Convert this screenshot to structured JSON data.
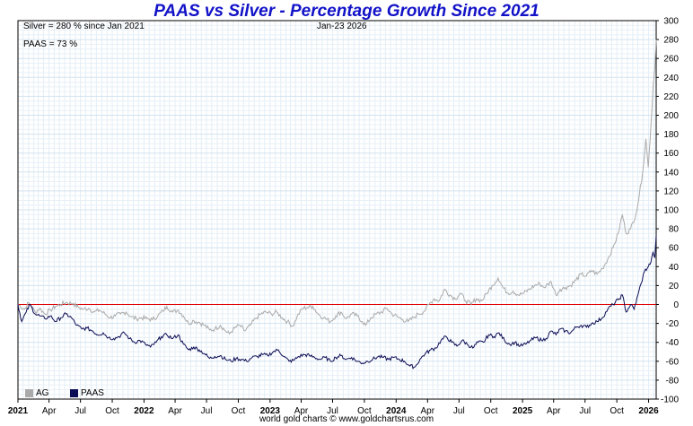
{
  "chart_data": {
    "type": "line",
    "title": "PAAS vs Silver - Percentage Growth Since 2021",
    "annotations": {
      "silver": "Silver = 280 % since Jan 2021",
      "paas": "PAAS = 73 %",
      "date": "Jan-23  2026"
    },
    "footer": "world gold charts © www.goldchartsrus.com",
    "xlim": [
      "2021-01-01",
      "2026-01-23"
    ],
    "ylim": [
      -100,
      300
    ],
    "yticks": [
      300,
      280,
      260,
      240,
      220,
      200,
      180,
      160,
      140,
      120,
      100,
      80,
      60,
      40,
      20,
      0,
      -20,
      -40,
      -60,
      -80,
      -100
    ],
    "xticks": [
      {
        "label": "2021",
        "date": "2021-01-01",
        "bold": true
      },
      {
        "label": "Apr",
        "date": "2021-04-01"
      },
      {
        "label": "Jul",
        "date": "2021-07-01"
      },
      {
        "label": "Oct",
        "date": "2021-10-01"
      },
      {
        "label": "2022",
        "date": "2022-01-01",
        "bold": true
      },
      {
        "label": "Apr",
        "date": "2022-04-01"
      },
      {
        "label": "Jul",
        "date": "2022-07-01"
      },
      {
        "label": "Oct",
        "date": "2022-10-01"
      },
      {
        "label": "2023",
        "date": "2023-01-01",
        "bold": true
      },
      {
        "label": "Apr",
        "date": "2023-04-01"
      },
      {
        "label": "Jul",
        "date": "2023-07-01"
      },
      {
        "label": "Oct",
        "date": "2023-10-01"
      },
      {
        "label": "2024",
        "date": "2024-01-01",
        "bold": true
      },
      {
        "label": "Apr",
        "date": "2024-04-01"
      },
      {
        "label": "Jul",
        "date": "2024-07-01"
      },
      {
        "label": "Oct",
        "date": "2024-10-01"
      },
      {
        "label": "2025",
        "date": "2025-01-01",
        "bold": true
      },
      {
        "label": "Apr",
        "date": "2025-04-01"
      },
      {
        "label": "Jul",
        "date": "2025-07-01"
      },
      {
        "label": "Oct",
        "date": "2025-10-01"
      },
      {
        "label": "2026",
        "date": "2026-01-01",
        "bold": true
      }
    ],
    "grid": true,
    "reference_line": {
      "y": 0,
      "color": "#dd0000"
    },
    "legend": {
      "position": "bottom-left"
    },
    "series": [
      {
        "name": "AG",
        "color": "#aaaaaa",
        "points": [
          [
            "2021-01-01",
            0
          ],
          [
            "2021-01-20",
            -5
          ],
          [
            "2021-02-01",
            2
          ],
          [
            "2021-02-20",
            -8
          ],
          [
            "2021-03-05",
            -4
          ],
          [
            "2021-03-20",
            -10
          ],
          [
            "2021-04-05",
            -6
          ],
          [
            "2021-04-20",
            -2
          ],
          [
            "2021-05-05",
            0
          ],
          [
            "2021-05-20",
            2
          ],
          [
            "2021-06-10",
            1
          ],
          [
            "2021-06-25",
            -3
          ],
          [
            "2021-07-10",
            -5
          ],
          [
            "2021-07-25",
            -4
          ],
          [
            "2021-08-10",
            -8
          ],
          [
            "2021-08-25",
            -6
          ],
          [
            "2021-09-10",
            -10
          ],
          [
            "2021-09-25",
            -14
          ],
          [
            "2021-10-10",
            -12
          ],
          [
            "2021-10-25",
            -10
          ],
          [
            "2021-11-10",
            -8
          ],
          [
            "2021-11-25",
            -13
          ],
          [
            "2021-12-10",
            -15
          ],
          [
            "2021-12-25",
            -14
          ],
          [
            "2022-01-10",
            -15
          ],
          [
            "2022-01-25",
            -16
          ],
          [
            "2022-02-10",
            -12
          ],
          [
            "2022-02-25",
            -7
          ],
          [
            "2022-03-08",
            -2
          ],
          [
            "2022-03-25",
            -8
          ],
          [
            "2022-04-10",
            -6
          ],
          [
            "2022-04-25",
            -12
          ],
          [
            "2022-05-10",
            -20
          ],
          [
            "2022-05-25",
            -17
          ],
          [
            "2022-06-10",
            -19
          ],
          [
            "2022-06-25",
            -22
          ],
          [
            "2022-07-10",
            -27
          ],
          [
            "2022-07-25",
            -26
          ],
          [
            "2022-08-10",
            -22
          ],
          [
            "2022-08-25",
            -28
          ],
          [
            "2022-09-05",
            -31
          ],
          [
            "2022-09-20",
            -25
          ],
          [
            "2022-10-05",
            -22
          ],
          [
            "2022-10-20",
            -28
          ],
          [
            "2022-11-05",
            -22
          ],
          [
            "2022-11-20",
            -15
          ],
          [
            "2022-12-05",
            -10
          ],
          [
            "2022-12-20",
            -8
          ],
          [
            "2023-01-05",
            -10
          ],
          [
            "2023-01-20",
            -8
          ],
          [
            "2023-02-05",
            -14
          ],
          [
            "2023-02-20",
            -18
          ],
          [
            "2023-03-08",
            -23
          ],
          [
            "2023-03-20",
            -13
          ],
          [
            "2023-04-05",
            -4
          ],
          [
            "2023-04-20",
            -3
          ],
          [
            "2023-05-05",
            -2
          ],
          [
            "2023-05-20",
            -10
          ],
          [
            "2023-06-05",
            -14
          ],
          [
            "2023-06-25",
            -18
          ],
          [
            "2023-07-10",
            -12
          ],
          [
            "2023-07-25",
            -8
          ],
          [
            "2023-08-10",
            -15
          ],
          [
            "2023-08-25",
            -10
          ],
          [
            "2023-09-10",
            -12
          ],
          [
            "2023-09-25",
            -18
          ],
          [
            "2023-10-05",
            -22
          ],
          [
            "2023-10-20",
            -14
          ],
          [
            "2023-11-05",
            -10
          ],
          [
            "2023-11-20",
            -8
          ],
          [
            "2023-12-05",
            -4
          ],
          [
            "2023-12-20",
            -10
          ],
          [
            "2024-01-05",
            -13
          ],
          [
            "2024-01-20",
            -16
          ],
          [
            "2024-02-05",
            -18
          ],
          [
            "2024-02-20",
            -14
          ],
          [
            "2024-03-05",
            -10
          ],
          [
            "2024-03-20",
            -8
          ],
          [
            "2024-04-05",
            0
          ],
          [
            "2024-04-20",
            6
          ],
          [
            "2024-05-05",
            4
          ],
          [
            "2024-05-20",
            16
          ],
          [
            "2024-06-05",
            10
          ],
          [
            "2024-06-20",
            6
          ],
          [
            "2024-07-05",
            12
          ],
          [
            "2024-07-20",
            4
          ],
          [
            "2024-08-05",
            0
          ],
          [
            "2024-08-20",
            6
          ],
          [
            "2024-09-05",
            4
          ],
          [
            "2024-09-20",
            12
          ],
          [
            "2024-10-05",
            20
          ],
          [
            "2024-10-22",
            28
          ],
          [
            "2024-11-05",
            18
          ],
          [
            "2024-11-20",
            12
          ],
          [
            "2024-12-05",
            14
          ],
          [
            "2024-12-20",
            10
          ],
          [
            "2025-01-05",
            12
          ],
          [
            "2025-01-20",
            16
          ],
          [
            "2025-02-05",
            20
          ],
          [
            "2025-02-20",
            22
          ],
          [
            "2025-03-05",
            18
          ],
          [
            "2025-03-25",
            24
          ],
          [
            "2025-04-08",
            10
          ],
          [
            "2025-04-20",
            16
          ],
          [
            "2025-05-05",
            18
          ],
          [
            "2025-05-20",
            20
          ],
          [
            "2025-06-05",
            26
          ],
          [
            "2025-06-20",
            32
          ],
          [
            "2025-07-05",
            30
          ],
          [
            "2025-07-20",
            36
          ],
          [
            "2025-08-05",
            32
          ],
          [
            "2025-08-20",
            38
          ],
          [
            "2025-09-05",
            48
          ],
          [
            "2025-09-20",
            60
          ],
          [
            "2025-10-05",
            75
          ],
          [
            "2025-10-17",
            95
          ],
          [
            "2025-10-28",
            75
          ],
          [
            "2025-11-10",
            80
          ],
          [
            "2025-11-25",
            95
          ],
          [
            "2025-12-05",
            115
          ],
          [
            "2025-12-15",
            140
          ],
          [
            "2025-12-24",
            175
          ],
          [
            "2025-12-31",
            145
          ],
          [
            "2026-01-08",
            190
          ],
          [
            "2026-01-14",
            230
          ],
          [
            "2026-01-19",
            250
          ],
          [
            "2026-01-23",
            280
          ]
        ]
      },
      {
        "name": "PAAS",
        "color": "#0d0d55",
        "points": [
          [
            "2021-01-01",
            0
          ],
          [
            "2021-01-12",
            -18
          ],
          [
            "2021-01-25",
            -8
          ],
          [
            "2021-02-05",
            0
          ],
          [
            "2021-02-20",
            -10
          ],
          [
            "2021-03-05",
            -12
          ],
          [
            "2021-03-20",
            -15
          ],
          [
            "2021-04-05",
            -12
          ],
          [
            "2021-04-20",
            -18
          ],
          [
            "2021-05-05",
            -14
          ],
          [
            "2021-05-20",
            -10
          ],
          [
            "2021-06-05",
            -14
          ],
          [
            "2021-06-20",
            -22
          ],
          [
            "2021-07-05",
            -26
          ],
          [
            "2021-07-20",
            -25
          ],
          [
            "2021-08-05",
            -28
          ],
          [
            "2021-08-20",
            -32
          ],
          [
            "2021-09-05",
            -30
          ],
          [
            "2021-09-20",
            -35
          ],
          [
            "2021-10-05",
            -36
          ],
          [
            "2021-10-20",
            -34
          ],
          [
            "2021-11-05",
            -30
          ],
          [
            "2021-11-20",
            -36
          ],
          [
            "2021-12-05",
            -40
          ],
          [
            "2021-12-20",
            -38
          ],
          [
            "2022-01-05",
            -42
          ],
          [
            "2022-01-20",
            -45
          ],
          [
            "2022-02-05",
            -40
          ],
          [
            "2022-02-20",
            -34
          ],
          [
            "2022-03-08",
            -32
          ],
          [
            "2022-03-25",
            -36
          ],
          [
            "2022-04-10",
            -32
          ],
          [
            "2022-04-25",
            -42
          ],
          [
            "2022-05-10",
            -48
          ],
          [
            "2022-05-25",
            -45
          ],
          [
            "2022-06-10",
            -48
          ],
          [
            "2022-06-25",
            -52
          ],
          [
            "2022-07-10",
            -57
          ],
          [
            "2022-07-25",
            -55
          ],
          [
            "2022-08-10",
            -54
          ],
          [
            "2022-08-25",
            -58
          ],
          [
            "2022-09-10",
            -60
          ],
          [
            "2022-09-25",
            -57
          ],
          [
            "2022-10-10",
            -58
          ],
          [
            "2022-10-25",
            -60
          ],
          [
            "2022-11-10",
            -56
          ],
          [
            "2022-11-25",
            -55
          ],
          [
            "2022-12-10",
            -53
          ],
          [
            "2022-12-25",
            -54
          ],
          [
            "2023-01-10",
            -50
          ],
          [
            "2023-01-25",
            -48
          ],
          [
            "2023-02-10",
            -55
          ],
          [
            "2023-02-25",
            -60
          ],
          [
            "2023-03-10",
            -59
          ],
          [
            "2023-03-25",
            -55
          ],
          [
            "2023-04-10",
            -53
          ],
          [
            "2023-04-25",
            -54
          ],
          [
            "2023-05-10",
            -56
          ],
          [
            "2023-05-25",
            -58
          ],
          [
            "2023-06-10",
            -56
          ],
          [
            "2023-06-25",
            -60
          ],
          [
            "2023-07-10",
            -56
          ],
          [
            "2023-07-25",
            -54
          ],
          [
            "2023-08-10",
            -58
          ],
          [
            "2023-08-25",
            -56
          ],
          [
            "2023-09-10",
            -60
          ],
          [
            "2023-09-25",
            -62
          ],
          [
            "2023-10-10",
            -60
          ],
          [
            "2023-10-25",
            -58
          ],
          [
            "2023-11-10",
            -55
          ],
          [
            "2023-11-25",
            -56
          ],
          [
            "2023-12-10",
            -58
          ],
          [
            "2023-12-25",
            -56
          ],
          [
            "2024-01-10",
            -58
          ],
          [
            "2024-01-25",
            -60
          ],
          [
            "2024-02-10",
            -65
          ],
          [
            "2024-02-25",
            -66
          ],
          [
            "2024-03-10",
            -58
          ],
          [
            "2024-03-25",
            -52
          ],
          [
            "2024-04-10",
            -48
          ],
          [
            "2024-04-25",
            -46
          ],
          [
            "2024-05-10",
            -38
          ],
          [
            "2024-05-25",
            -34
          ],
          [
            "2024-06-10",
            -40
          ],
          [
            "2024-06-25",
            -44
          ],
          [
            "2024-07-10",
            -38
          ],
          [
            "2024-07-25",
            -42
          ],
          [
            "2024-08-10",
            -46
          ],
          [
            "2024-08-25",
            -40
          ],
          [
            "2024-09-10",
            -40
          ],
          [
            "2024-09-25",
            -32
          ],
          [
            "2024-10-10",
            -34
          ],
          [
            "2024-10-25",
            -30
          ],
          [
            "2024-11-10",
            -38
          ],
          [
            "2024-11-25",
            -42
          ],
          [
            "2024-12-10",
            -40
          ],
          [
            "2024-12-25",
            -44
          ],
          [
            "2025-01-10",
            -42
          ],
          [
            "2025-01-25",
            -38
          ],
          [
            "2025-02-10",
            -35
          ],
          [
            "2025-02-25",
            -38
          ],
          [
            "2025-03-10",
            -36
          ],
          [
            "2025-03-25",
            -28
          ],
          [
            "2025-04-08",
            -32
          ],
          [
            "2025-04-20",
            -26
          ],
          [
            "2025-05-05",
            -28
          ],
          [
            "2025-05-20",
            -30
          ],
          [
            "2025-06-05",
            -24
          ],
          [
            "2025-06-20",
            -22
          ],
          [
            "2025-07-05",
            -24
          ],
          [
            "2025-07-20",
            -20
          ],
          [
            "2025-08-05",
            -18
          ],
          [
            "2025-08-20",
            -14
          ],
          [
            "2025-09-05",
            -5
          ],
          [
            "2025-09-20",
            0
          ],
          [
            "2025-10-05",
            5
          ],
          [
            "2025-10-17",
            10
          ],
          [
            "2025-10-28",
            -8
          ],
          [
            "2025-11-10",
            0
          ],
          [
            "2025-11-20",
            -5
          ],
          [
            "2025-12-01",
            10
          ],
          [
            "2025-12-10",
            22
          ],
          [
            "2025-12-20",
            35
          ],
          [
            "2025-12-31",
            40
          ],
          [
            "2026-01-08",
            45
          ],
          [
            "2026-01-14",
            55
          ],
          [
            "2026-01-19",
            50
          ],
          [
            "2026-01-23",
            73
          ]
        ]
      }
    ]
  }
}
